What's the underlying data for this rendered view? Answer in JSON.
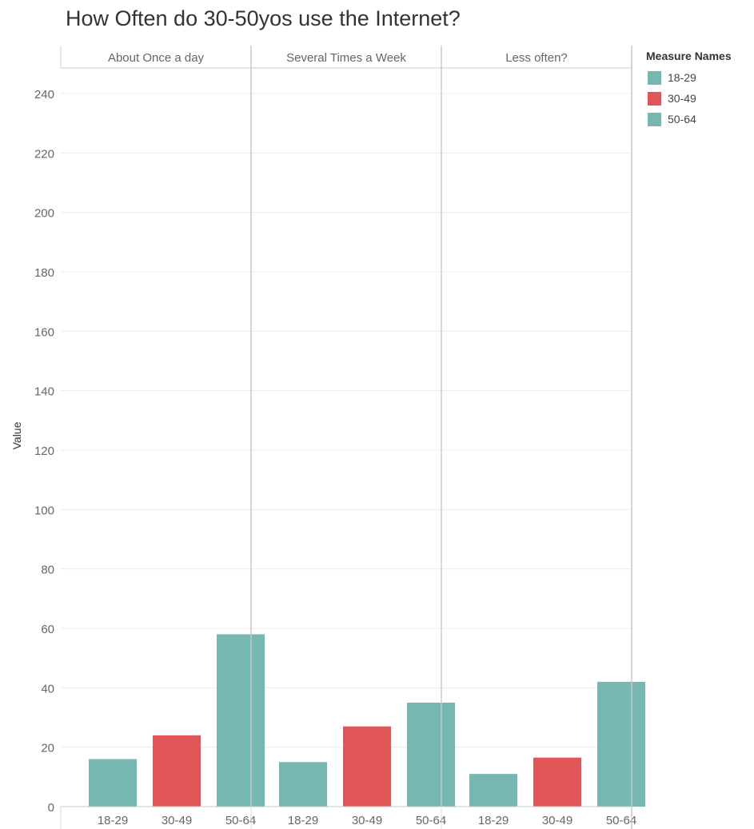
{
  "chart_data": {
    "type": "bar",
    "title": "How Often do 30-50yos use the Internet?",
    "ylabel": "Value",
    "xlabel": "",
    "ylim": [
      0,
      245
    ],
    "yticks": [
      0,
      20,
      40,
      60,
      80,
      100,
      120,
      140,
      160,
      180,
      200,
      220,
      240
    ],
    "grid": true,
    "panels": [
      {
        "name": "About Once a day",
        "bars": [
          {
            "category": "18-29",
            "value": 16
          },
          {
            "category": "30-49",
            "value": 24
          },
          {
            "category": "50-64",
            "value": 58
          }
        ]
      },
      {
        "name": "Several Times a Week",
        "bars": [
          {
            "category": "18-29",
            "value": 15
          },
          {
            "category": "30-49",
            "value": 27
          },
          {
            "category": "50-64",
            "value": 35
          }
        ]
      },
      {
        "name": "Less often?",
        "bars": [
          {
            "category": "18-29",
            "value": 11
          },
          {
            "category": "30-49",
            "value": 16.5
          },
          {
            "category": "50-64",
            "value": 42
          }
        ]
      }
    ],
    "legend": {
      "title": "Measure Names",
      "position": "top-right",
      "items": [
        {
          "label": "18-29",
          "color": "#76b7b2"
        },
        {
          "label": "30-49",
          "color": "#e15759"
        },
        {
          "label": "50-64",
          "color": "#76b7b2"
        }
      ]
    }
  }
}
